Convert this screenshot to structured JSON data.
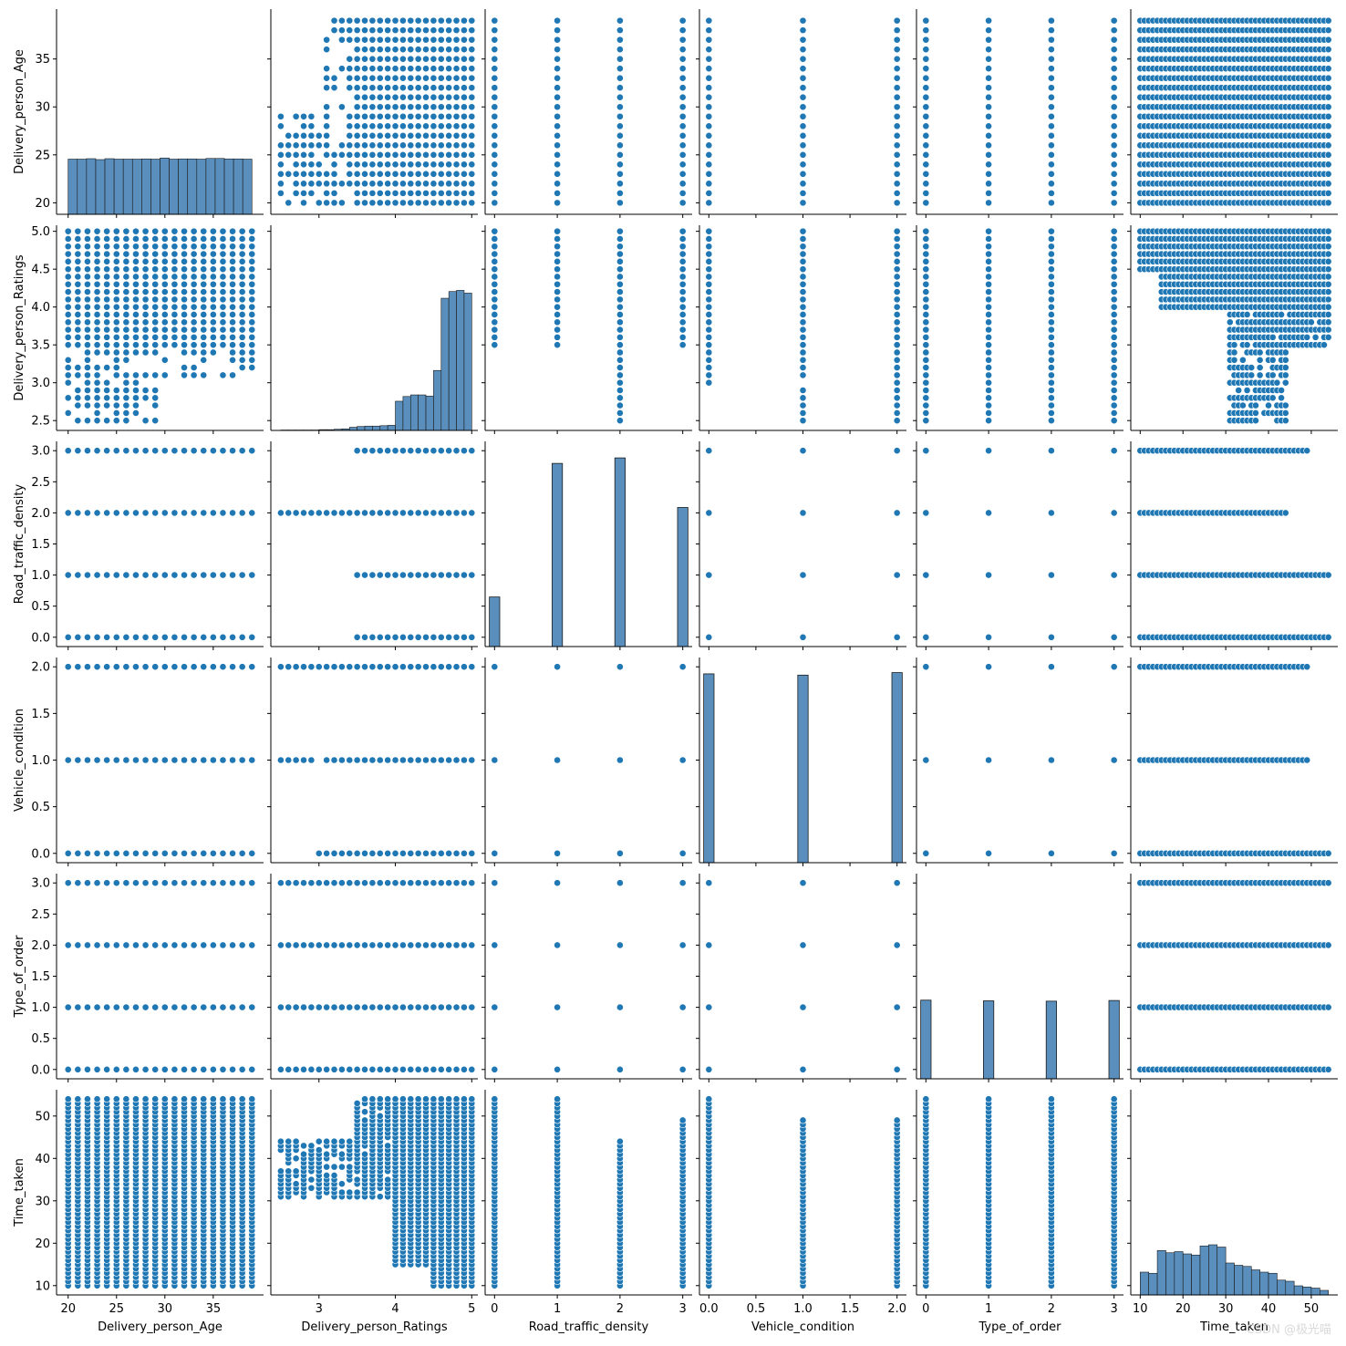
{
  "chart_data": {
    "type": "scatter",
    "subtype": "pairplot",
    "point_color": "#1f77b4",
    "hist_color": "#5a8fbd",
    "variables": [
      {
        "name": "Delivery_person_Age",
        "lim": [
          18.8,
          40.2
        ],
        "ticks": [
          20,
          25,
          30,
          35
        ],
        "tick_labels": [
          "20",
          "25",
          "30",
          "35"
        ],
        "kind": "int",
        "values": [
          20,
          21,
          22,
          23,
          24,
          25,
          26,
          27,
          28,
          29,
          30,
          31,
          32,
          33,
          34,
          35,
          36,
          37,
          38,
          39
        ]
      },
      {
        "name": "Delivery_person_Ratings",
        "lim": [
          2.37,
          5.08
        ],
        "ticks": [
          2.5,
          3.0,
          3.5,
          4.0,
          4.5,
          5.0
        ],
        "tick_labels": [
          "2.5",
          "3.0",
          "3.5",
          "4.0",
          "4.5",
          "5.0"
        ],
        "xticks": [
          3,
          4,
          5
        ],
        "xtick_labels": [
          "3",
          "4",
          "5"
        ],
        "kind": "dec",
        "values": [
          2.5,
          2.6,
          2.7,
          2.8,
          2.9,
          3.0,
          3.1,
          3.2,
          3.3,
          3.4,
          3.5,
          3.6,
          3.7,
          3.8,
          3.9,
          4.0,
          4.1,
          4.2,
          4.3,
          4.4,
          4.5,
          4.6,
          4.7,
          4.8,
          4.9,
          5.0
        ]
      },
      {
        "name": "Road_traffic_density",
        "lim": [
          -0.15,
          3.15
        ],
        "ticks": [
          0.0,
          0.5,
          1.0,
          1.5,
          2.0,
          2.5,
          3.0
        ],
        "tick_labels": [
          "0.0",
          "0.5",
          "1.0",
          "1.5",
          "2.0",
          "2.5",
          "3.0"
        ],
        "xticks": [
          0,
          1,
          2,
          3
        ],
        "xtick_labels": [
          "0",
          "1",
          "2",
          "3"
        ],
        "kind": "cat",
        "values": [
          0,
          1,
          2,
          3
        ]
      },
      {
        "name": "Vehicle_condition",
        "lim": [
          -0.1,
          2.1
        ],
        "ticks": [
          0.0,
          0.5,
          1.0,
          1.5,
          2.0
        ],
        "tick_labels": [
          "0.0",
          "0.5",
          "1.0",
          "1.5",
          "2.0"
        ],
        "xticks": [
          0.0,
          0.5,
          1.0,
          1.5,
          2.0
        ],
        "xtick_labels": [
          "0.0",
          "0.5",
          "1.0",
          "1.5",
          "2.0"
        ],
        "kind": "cat",
        "values": [
          0,
          1,
          2
        ]
      },
      {
        "name": "Type_of_order",
        "lim": [
          -0.15,
          3.15
        ],
        "ticks": [
          0.0,
          0.5,
          1.0,
          1.5,
          2.0,
          2.5,
          3.0
        ],
        "tick_labels": [
          "0.0",
          "0.5",
          "1.0",
          "1.5",
          "2.0",
          "2.5",
          "3.0"
        ],
        "xticks": [
          0,
          1,
          2,
          3
        ],
        "xtick_labels": [
          "0",
          "1",
          "2",
          "3"
        ],
        "kind": "cat",
        "values": [
          0,
          1,
          2,
          3
        ]
      },
      {
        "name": "Time_taken",
        "lim": [
          7.8,
          56.2
        ],
        "ticks": [
          10,
          20,
          30,
          40,
          50
        ],
        "tick_labels": [
          "10",
          "20",
          "30",
          "40",
          "50"
        ],
        "kind": "int",
        "values": [
          10,
          11,
          12,
          13,
          14,
          15,
          16,
          17,
          18,
          19,
          20,
          21,
          22,
          23,
          24,
          25,
          26,
          27,
          28,
          29,
          30,
          31,
          32,
          33,
          34,
          35,
          36,
          37,
          38,
          39,
          40,
          41,
          42,
          43,
          44,
          45,
          46,
          47,
          48,
          49,
          50,
          51,
          52,
          53,
          54
        ]
      }
    ],
    "histograms": [
      {
        "var": "Delivery_person_Age",
        "bins": [
          20,
          20.95,
          21.9,
          22.85,
          23.8,
          24.75,
          25.7,
          26.65,
          27.6,
          28.55,
          29.5,
          30.45,
          31.4,
          32.35,
          33.3,
          34.25,
          35.2,
          36.15,
          37.1,
          38.05,
          39
        ],
        "counts": [
          2420,
          2420,
          2440,
          2400,
          2440,
          2420,
          2420,
          2420,
          2430,
          2420,
          2470,
          2420,
          2430,
          2430,
          2420,
          2450,
          2450,
          2430,
          2430,
          2420
        ],
        "ylim": [
          0,
          9000
        ]
      },
      {
        "var": "Delivery_person_Ratings",
        "bins": [
          2.5,
          2.6,
          2.7,
          2.8,
          2.9,
          3.0,
          3.1,
          3.2,
          3.3,
          3.4,
          3.5,
          3.6,
          3.7,
          3.8,
          3.9,
          4.0,
          4.1,
          4.2,
          4.3,
          4.4,
          4.5,
          4.6,
          4.7,
          4.8,
          4.9,
          5.0
        ],
        "counts": [
          10,
          10,
          10,
          10,
          10,
          20,
          20,
          30,
          40,
          80,
          100,
          110,
          110,
          120,
          130,
          740,
          860,
          900,
          900,
          870,
          1520,
          3350,
          3520,
          3550,
          3480,
          1980
        ],
        "ylim": [
          0,
          5200
        ]
      },
      {
        "var": "Road_traffic_density",
        "counts": [
          3600,
          13300,
          13700,
          10100
        ],
        "ylim": [
          0,
          14900
        ]
      },
      {
        "var": "Vehicle_condition",
        "counts": [
          15000,
          14900,
          15100
        ],
        "ylim": [
          0,
          16300
        ]
      },
      {
        "var": "Type_of_order",
        "counts": [
          11500,
          11400,
          11350,
          11450
        ],
        "ylim": [
          0,
          30000
        ]
      },
      {
        "var": "Time_taken",
        "bins": [
          10,
          12,
          14,
          16,
          18,
          20,
          22,
          24,
          26,
          28,
          30,
          32,
          34,
          36,
          38,
          40,
          42,
          44,
          46,
          48,
          50,
          52,
          54
        ],
        "counts": [
          2000,
          1900,
          3900,
          3700,
          3800,
          3600,
          3500,
          4300,
          4400,
          4200,
          2800,
          2600,
          2500,
          2200,
          2000,
          1900,
          1300,
          1200,
          800,
          700,
          600,
          400,
          300
        ],
        "ylim": [
          0,
          18000
        ]
      }
    ]
  },
  "watermark": "CSDN @极光喵"
}
